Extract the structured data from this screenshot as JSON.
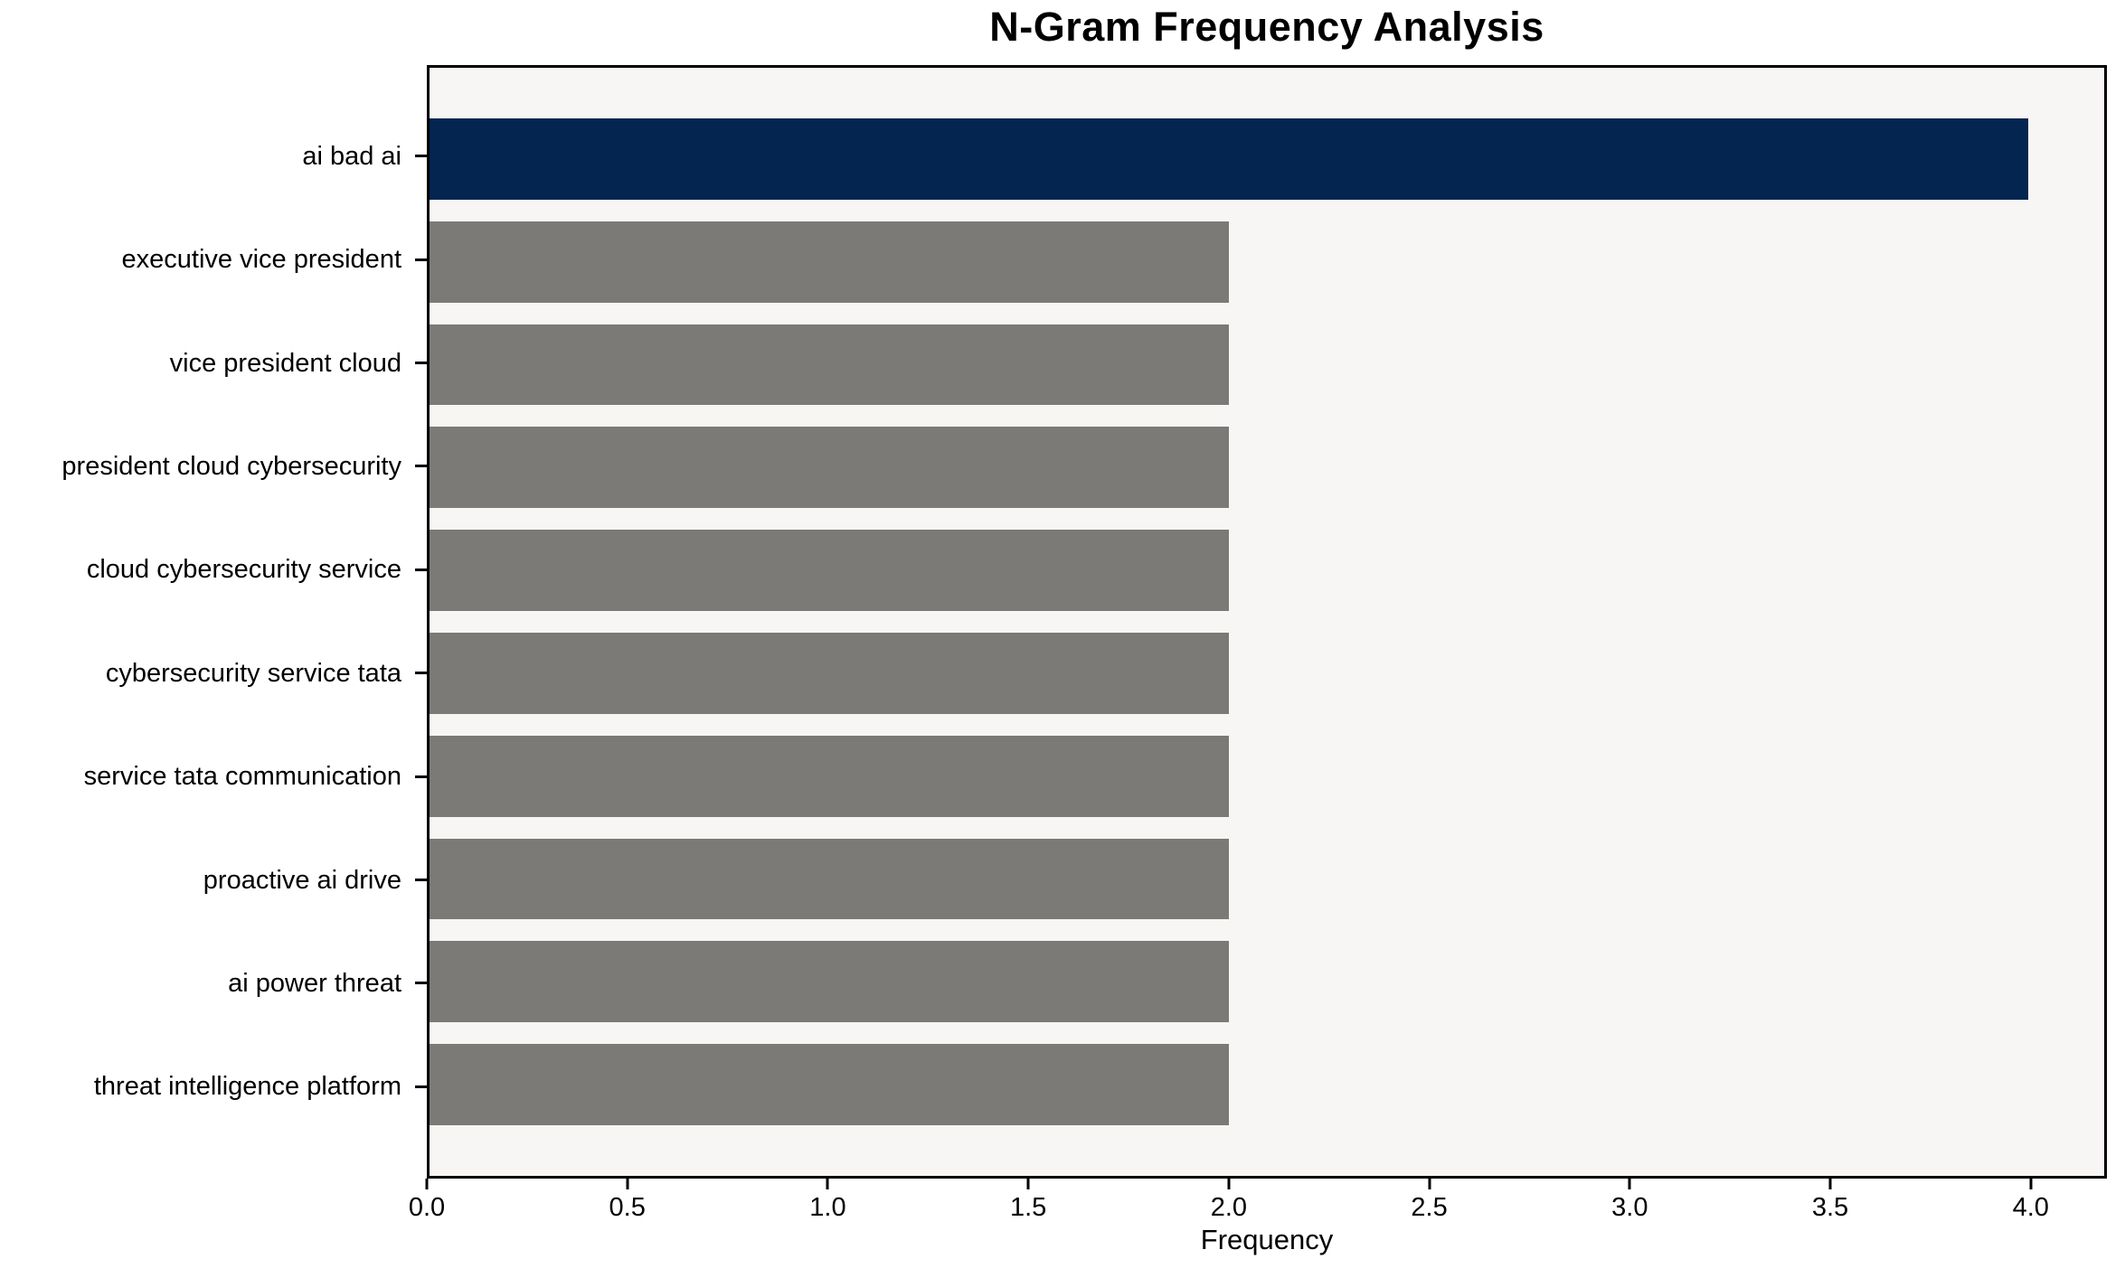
{
  "title": "N-Gram Frequency Analysis",
  "chart_data": {
    "type": "bar",
    "orientation": "horizontal",
    "title": "N-Gram Frequency Analysis",
    "xlabel": "Frequency",
    "ylabel": "",
    "categories": [
      "ai bad ai",
      "executive vice president",
      "vice president cloud",
      "president cloud cybersecurity",
      "cloud cybersecurity service",
      "cybersecurity service tata",
      "service tata communication",
      "proactive ai drive",
      "ai power threat",
      "threat intelligence platform"
    ],
    "values": [
      4,
      2,
      2,
      2,
      2,
      2,
      2,
      2,
      2,
      2
    ],
    "bar_colors": [
      "#03254f",
      "#7c7a76",
      "#7c7a76",
      "#7c7a76",
      "#7c7a76",
      "#7c7a76",
      "#7c7a76",
      "#7c7a76",
      "#7c7a76",
      "#7c7a76"
    ],
    "xlim": [
      0,
      4.19
    ],
    "xticks": [
      0.0,
      0.5,
      1.0,
      1.5,
      2.0,
      2.5,
      3.0,
      3.5,
      4.0
    ],
    "xtick_labels": [
      "0.0",
      "0.5",
      "1.0",
      "1.5",
      "2.0",
      "2.5",
      "3.0",
      "3.5",
      "4.0"
    ],
    "grid": false,
    "legend": null,
    "colors": {
      "highlight_bar": "#03254f",
      "default_bar": "#7c7a76",
      "plot_background": "#f7f6f5",
      "figure_background": "#ffffff",
      "spine": "#000000",
      "text": "#000000"
    }
  }
}
